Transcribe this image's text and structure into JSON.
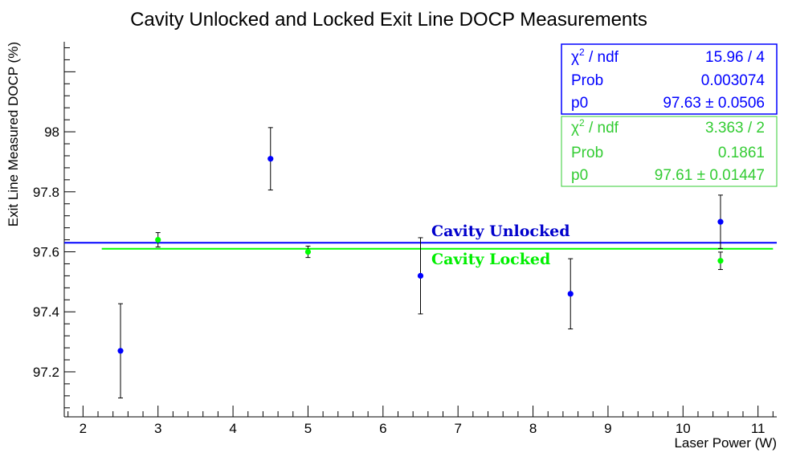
{
  "chart_data": {
    "type": "scatter",
    "title": "Cavity Unlocked and Locked Exit Line DOCP Measurements",
    "xlabel": "Laser Power (W)",
    "ylabel": "Exit Line Measured DOCP (%)",
    "xlim": [
      1.75,
      11.25
    ],
    "ylim": [
      97.05,
      98.3
    ],
    "x_ticks": [
      2,
      3,
      4,
      5,
      6,
      7,
      8,
      9,
      10,
      11
    ],
    "y_ticks": [
      97.2,
      97.4,
      97.6,
      97.8,
      98
    ],
    "y_tick_labels": [
      "97.2",
      "97.4",
      "97.6",
      "97.8",
      "98"
    ],
    "grid": false,
    "series": [
      {
        "name": "Cavity Unlocked",
        "color": "#0000ff",
        "points": [
          {
            "x": 2.5,
            "y": 97.27,
            "err": 0.157
          },
          {
            "x": 4.5,
            "y": 97.91,
            "err": 0.104
          },
          {
            "x": 6.5,
            "y": 97.52,
            "err": 0.127
          },
          {
            "x": 8.5,
            "y": 97.46,
            "err": 0.117
          },
          {
            "x": 10.5,
            "y": 97.7,
            "err": 0.089
          }
        ],
        "fit": {
          "x_range": [
            1.75,
            11.25
          ],
          "p0": 97.63
        }
      },
      {
        "name": "Cavity Locked",
        "color": "#00ff00",
        "points": [
          {
            "x": 3.0,
            "y": 97.64,
            "err": 0.024
          },
          {
            "x": 5.0,
            "y": 97.6,
            "err": 0.019
          },
          {
            "x": 10.5,
            "y": 97.57,
            "err": 0.029
          }
        ],
        "fit": {
          "x_range": [
            2.25,
            11.2
          ],
          "p0": 97.61
        }
      }
    ],
    "stat_boxes": [
      {
        "color": "#0000ff",
        "rows": [
          {
            "label": "/ ndf",
            "value": "15.96 / 4"
          },
          {
            "label": "Prob",
            "value": "0.003074"
          },
          {
            "label": "p0",
            "value": "97.63",
            "error": "0.0506"
          }
        ]
      },
      {
        "color": "#33cc33",
        "rows": [
          {
            "label": "/ ndf",
            "value": "3.363 / 2"
          },
          {
            "label": "Prob",
            "value": "0.1861"
          },
          {
            "label": "p0",
            "value": "97.61",
            "error": "0.01447"
          }
        ]
      }
    ],
    "annotations": [
      {
        "text": "Cavity Unlocked",
        "color": "#0000cc"
      },
      {
        "text": "Cavity Locked",
        "color": "#00ee00"
      }
    ]
  }
}
